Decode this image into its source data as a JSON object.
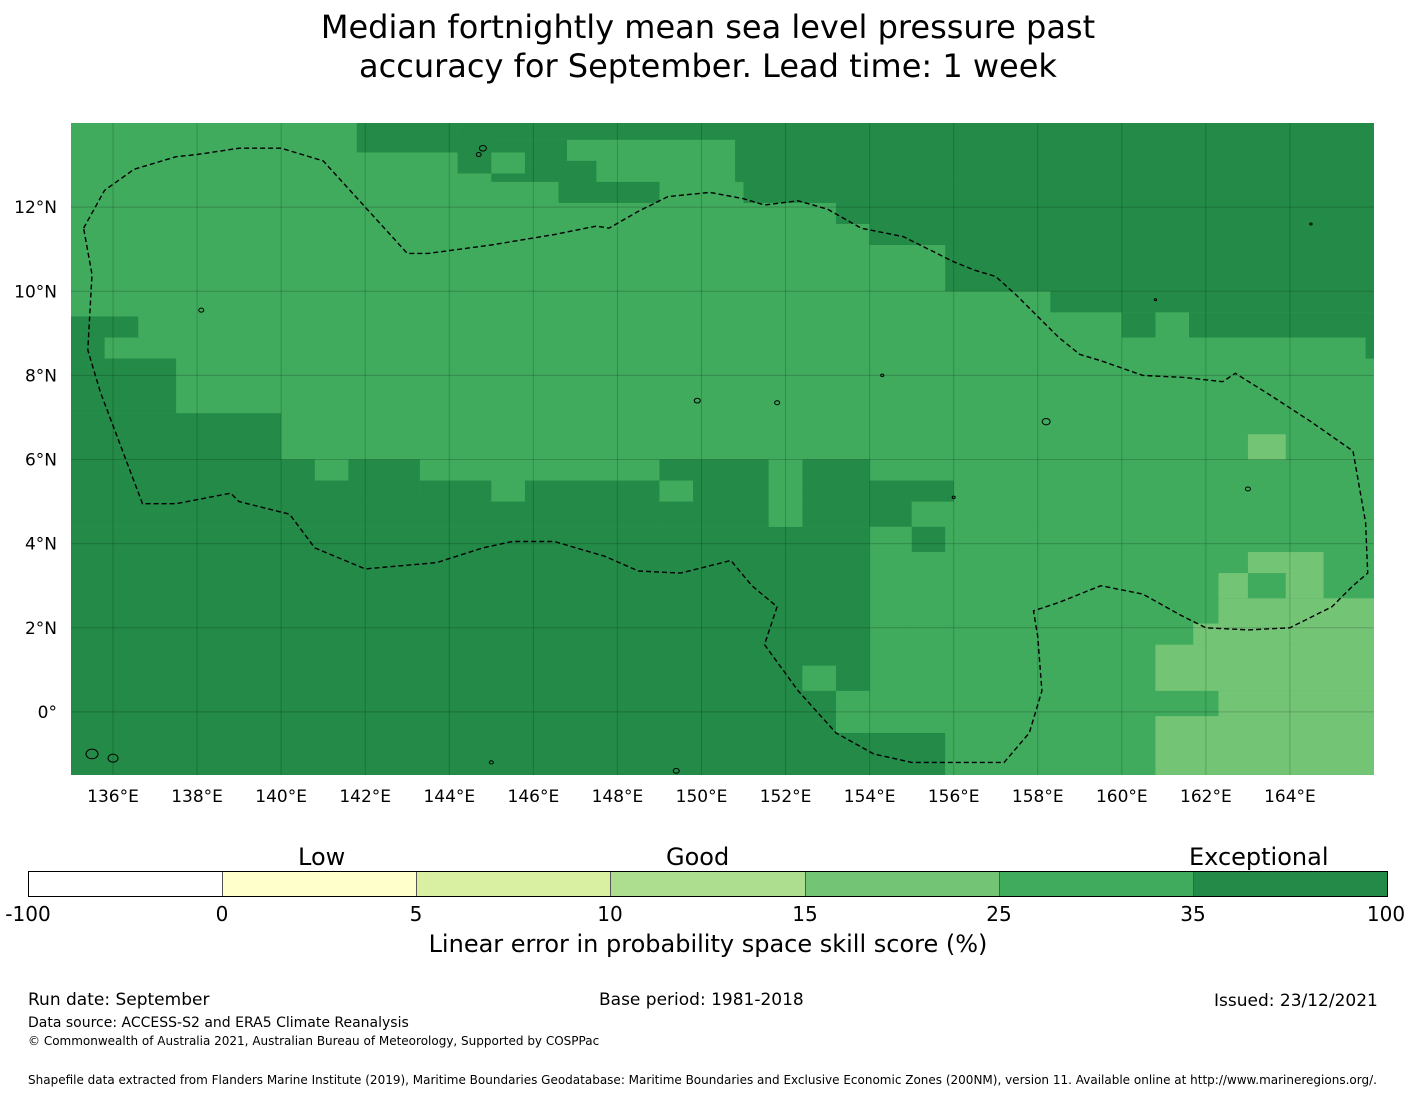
{
  "title": {
    "line1": "Median fortnightly mean sea level pressure past",
    "line2": "accuracy for September. Lead time: 1 week"
  },
  "map": {
    "lon_ticks": [
      "136°E",
      "138°E",
      "140°E",
      "142°E",
      "144°E",
      "146°E",
      "148°E",
      "150°E",
      "152°E",
      "154°E",
      "156°E",
      "158°E",
      "160°E",
      "162°E",
      "164°E"
    ],
    "lat_ticks": [
      "12°N",
      "10°N",
      "8°N",
      "6°N",
      "4°N",
      "2°N",
      "0°"
    ],
    "lon_range": [
      135,
      166
    ],
    "lat_range": [
      -1.5,
      14
    ],
    "colors": {
      "35_100": "#238a47",
      "25_35": "#40aa5d",
      "15_25": "#74c476",
      "coastline": "#000000"
    }
  },
  "colorbar": {
    "category_labels": [
      "Low",
      "Good",
      "Exceptional"
    ],
    "ticks": [
      "-100",
      "0",
      "5",
      "10",
      "15",
      "25",
      "35",
      "100"
    ],
    "colors": [
      "#ffffff",
      "#ffffcc",
      "#d9f0a3",
      "#addd8e",
      "#74c476",
      "#40aa5d",
      "#238a47"
    ],
    "label": "Linear error in probability space skill score (%)"
  },
  "footer": {
    "run_date": "Run date: September",
    "base_period": "Base period: 1981-2018",
    "issued": "Issued: 23/12/2021",
    "data_source": "Data source: ACCESS-S2 and ERA5 Climate Reanalysis",
    "copyright": "© Commonwealth of Australia 2021, Australian Bureau of Meteorology, Supported by COSPPac",
    "shapefile": "Shapefile data extracted from Flanders Marine Institute (2019), Maritime Boundaries Geodatabase: Maritime Boundaries and Exclusive Economic Zones (200NM), version 11. Available online at http://www.marineregions.org/."
  }
}
